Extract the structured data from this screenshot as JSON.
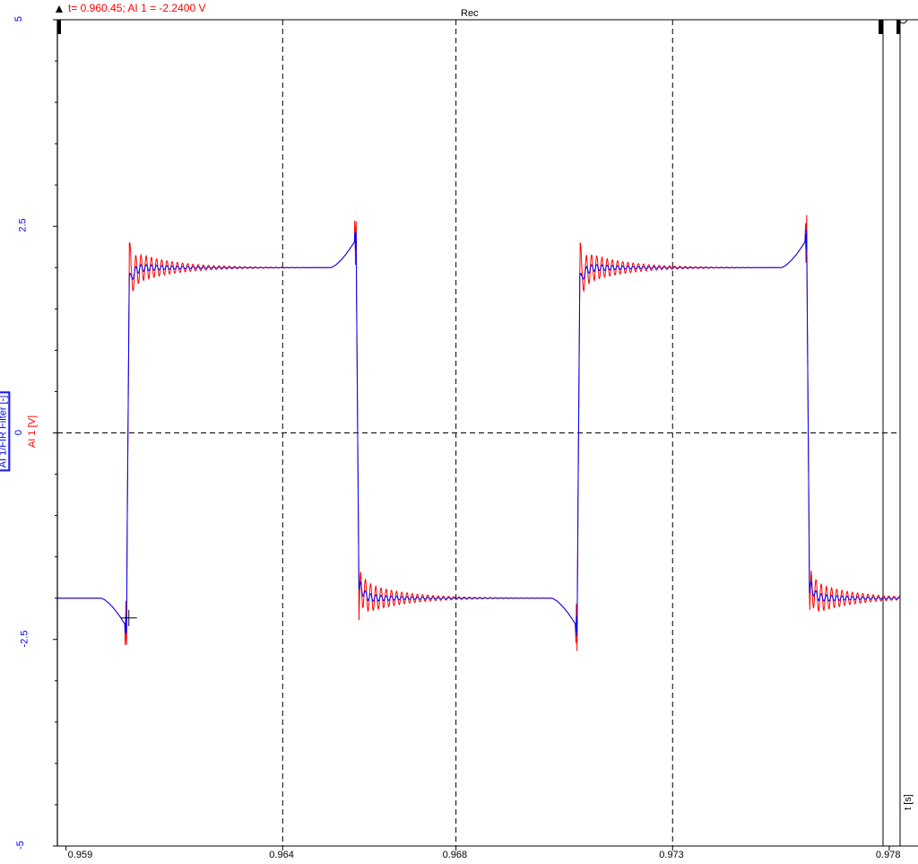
{
  "cursor_readout": "t= 0.960.45; AI 1 = -2.2400 V",
  "chart_data": {
    "type": "line",
    "title": "Rec",
    "xlabel": "t [s]",
    "ylabels": [
      "AI 1/FIR Filter [-]",
      "AI 1 [V]"
    ],
    "xlim": [
      0.9588,
      0.97825
    ],
    "ylim": [
      -5,
      5
    ],
    "x_tick_labels": [
      "0.959",
      "0.964",
      "0.968",
      "0.973",
      "0.978"
    ],
    "y_tick_labels": [
      "5",
      "2.5",
      "0",
      "-2.5",
      "-5"
    ],
    "grid": "dashed",
    "period": 0.0104,
    "rise_times": [
      0.9604,
      0.9708
    ],
    "fall_times": [
      0.9657,
      0.9761
    ],
    "high_level": 2,
    "low_level": -2,
    "series": [
      {
        "name": "AI 1/FIR Filter [-]",
        "color": "#0000ff",
        "levels": [
          -2.0,
          2.0
        ],
        "overshoot": 2.35,
        "undershoot": -2.35,
        "ripple": 0.04
      },
      {
        "name": "AI 1 [V]",
        "color": "#ff0000",
        "levels": [
          -2.0,
          2.0
        ],
        "overshoot": 2.6,
        "undershoot": -2.6,
        "ripple": 0.13
      }
    ],
    "cursor": {
      "t": 0.96045,
      "value": -2.24
    }
  }
}
